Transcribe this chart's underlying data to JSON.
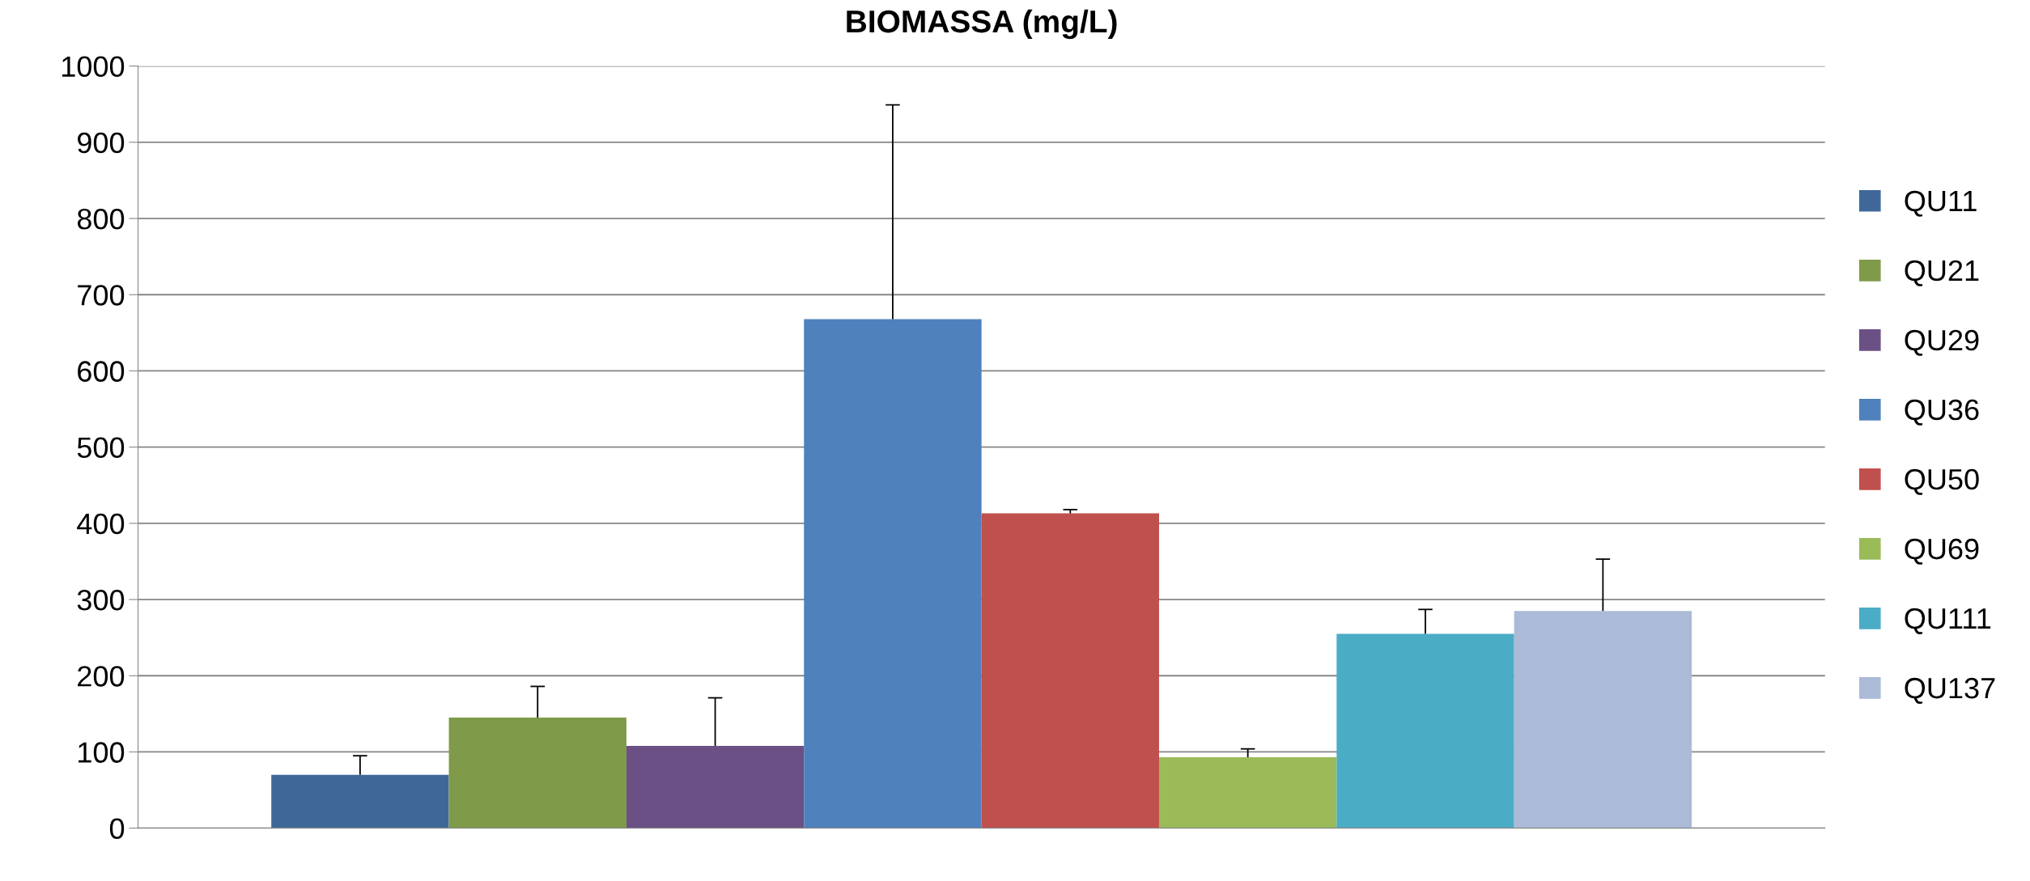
{
  "chart_data": {
    "type": "bar",
    "title": "BIOMASSA (mg/L)",
    "categories": [
      null
    ],
    "series": [
      {
        "name": "QU11",
        "color": "#3f6899",
        "values": [
          70
        ],
        "errors": [
          [
            70,
            95
          ]
        ]
      },
      {
        "name": "QU21",
        "color": "#7f9a48",
        "values": [
          145
        ],
        "errors": [
          [
            145,
            186
          ]
        ]
      },
      {
        "name": "QU29",
        "color": "#6a5084",
        "values": [
          108
        ],
        "errors": [
          [
            108,
            171
          ]
        ]
      },
      {
        "name": "QU36",
        "color": "#4f81bd",
        "values": [
          668
        ],
        "errors": [
          [
            668,
            949
          ]
        ]
      },
      {
        "name": "QU50",
        "color": "#c0504d",
        "values": [
          413
        ],
        "errors": [
          [
            413,
            418
          ]
        ]
      },
      {
        "name": "QU69",
        "color": "#9bbb59",
        "values": [
          93
        ],
        "errors": [
          [
            93,
            104
          ]
        ]
      },
      {
        "name": "QU111",
        "color": "#4bacc6",
        "values": [
          255
        ],
        "errors": [
          [
            255,
            287
          ]
        ]
      },
      {
        "name": "QU137",
        "color": "#aabad7",
        "values": [
          285
        ],
        "errors": [
          [
            285,
            353
          ]
        ]
      }
    ],
    "ylim": [
      0,
      1000
    ],
    "yticks": [
      0,
      100,
      200,
      300,
      400,
      500,
      600,
      700,
      800,
      900,
      1000
    ],
    "grid": "y",
    "legend": "right"
  }
}
